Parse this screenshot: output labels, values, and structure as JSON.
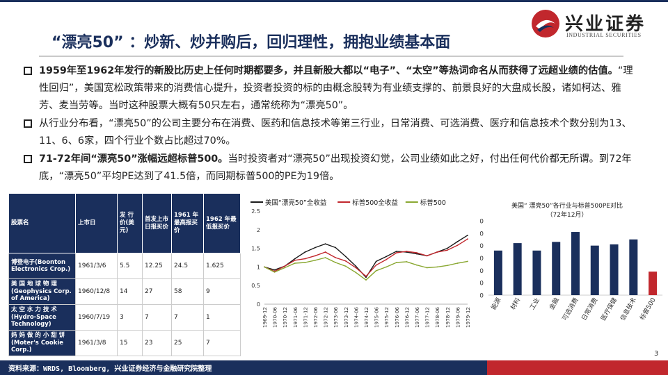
{
  "brand": {
    "name_cn": "兴业证券",
    "name_en": "INDUSTRIAL SECURITIES",
    "colors": {
      "navy": "#1a2f5c",
      "red": "#c1272d"
    }
  },
  "slide": {
    "title": "“漂亮50” ：炒新、炒并购后，回归理性，拥抱业绩基本面",
    "page_number": "3",
    "source": "资料来源：WRDS, Bloomberg, 兴业证券经济与金融研究院整理"
  },
  "bullets": [
    {
      "bold": "1959年至1962年发行的新股比历史上任何时期都要多，并且新股大都以“电子”、“太空”等热词命名从而获得了远超业绩的估值。",
      "text": "“理性回归”，美国宽松政策带来的消费信心提升，投资者投资的标的由概念股转为有业绩支撑的、前景良好的大盘成长股，诸如柯达、雅芳、麦当劳等。当时这种股票大概有50只左右，通常统称为“漂亮50”。"
    },
    {
      "bold": "",
      "text": "从行业分布看，“漂亮50”的公司主要分布在消费、医药和信息技术等第三行业，日常消费、可选消费、医疗和信息技术个数分别为13、11、6、6家，四个行业个数占比超过70%。"
    },
    {
      "bold": "71-72年间“漂亮50”涨幅远超标普500。",
      "text": "当时投资者对“漂亮50”出现投资幻觉，公司业绩如此之好，付出任何代价都无所谓。到72年底，“漂亮50”平均PE达到了41.5倍，而同期标普500的PE为19倍。"
    }
  ],
  "stock_table": {
    "headers": [
      "股票名",
      "上市日",
      "发 行 价(美元)",
      "首发上市日报买价",
      "1961 年最高报买价",
      "1962 年最低报买价"
    ],
    "rows": [
      [
        "博登电子(Boonton Electronics Crop.)",
        "1961/3/6",
        "5.5",
        "12.25",
        "24.5",
        "1.625"
      ],
      [
        "美 国 地 球 物 理 (Geophysics Corp. of America)",
        "1960/12/8",
        "14",
        "27",
        "58",
        "9"
      ],
      [
        "太 空 水 力 技 术 (Hydro-Space Technology)",
        "1960/7/19",
        "3",
        "7",
        "7",
        "1"
      ],
      [
        "妈 妈 做 的 小 甜 饼 (Moter's Cookie Corp.)",
        "1961/3/8",
        "15",
        "23",
        "25",
        "7"
      ]
    ]
  },
  "chart_data": [
    {
      "type": "line",
      "legend": [
        "美国“漂亮50”全收益",
        "标普500全收益",
        "标普500"
      ],
      "series_colors": [
        "#1a1a1a",
        "#c1272d",
        "#8aa832"
      ],
      "legend_position": "top",
      "ylim": [
        0,
        2.5
      ],
      "yticks": [
        "0",
        "0.5",
        "1",
        "1.5",
        "2",
        "2.5"
      ],
      "xticks": [
        "1969-12",
        "1970-06",
        "1970-12",
        "1971-06",
        "1971-12",
        "1972-06",
        "1972-12",
        "1973-06",
        "1973-12",
        "1974-06",
        "1974-12",
        "1975-06",
        "1975-12",
        "1976-06",
        "1976-12",
        "1977-06",
        "1977-12",
        "1978-06",
        "1978-12",
        "1979-06",
        "1979-12"
      ],
      "series": [
        {
          "name": "美国“漂亮50”全收益",
          "values": [
            1.0,
            0.92,
            1.02,
            1.22,
            1.4,
            1.52,
            1.62,
            1.52,
            1.28,
            1.02,
            0.72,
            1.15,
            1.28,
            1.42,
            1.4,
            1.35,
            1.3,
            1.4,
            1.5,
            1.68,
            1.85
          ]
        },
        {
          "name": "标普500全收益",
          "values": [
            1.0,
            0.88,
            1.02,
            1.18,
            1.22,
            1.3,
            1.4,
            1.25,
            1.16,
            0.98,
            0.75,
            1.05,
            1.2,
            1.38,
            1.42,
            1.38,
            1.3,
            1.4,
            1.45,
            1.58,
            1.75
          ]
        },
        {
          "name": "标普500",
          "values": [
            1.0,
            0.86,
            0.98,
            1.1,
            1.12,
            1.18,
            1.25,
            1.12,
            1.02,
            0.85,
            0.65,
            0.9,
            1.0,
            1.12,
            1.14,
            1.05,
            0.98,
            1.0,
            1.04,
            1.1,
            1.15
          ]
        }
      ]
    },
    {
      "type": "bar",
      "title": "美国“ 漂亮50”各行业与标普500PE对比",
      "subtitle": "（72年12月）",
      "categories": [
        "能源",
        "材料",
        "工业",
        "金融",
        "可选消费",
        "日常消费",
        "医疗保健",
        "信息技术",
        "标普500"
      ],
      "values": [
        36,
        42,
        36,
        43,
        51,
        40,
        41,
        45,
        19
      ],
      "bar_colors": [
        "#1a2f5c",
        "#1a2f5c",
        "#1a2f5c",
        "#1a2f5c",
        "#1a2f5c",
        "#1a2f5c",
        "#1a2f5c",
        "#1a2f5c",
        "#c1272d"
      ],
      "ylim": [
        0,
        60
      ],
      "yticks": [
        "0",
        "10",
        "20",
        "30",
        "40",
        "50",
        "60"
      ]
    }
  ]
}
